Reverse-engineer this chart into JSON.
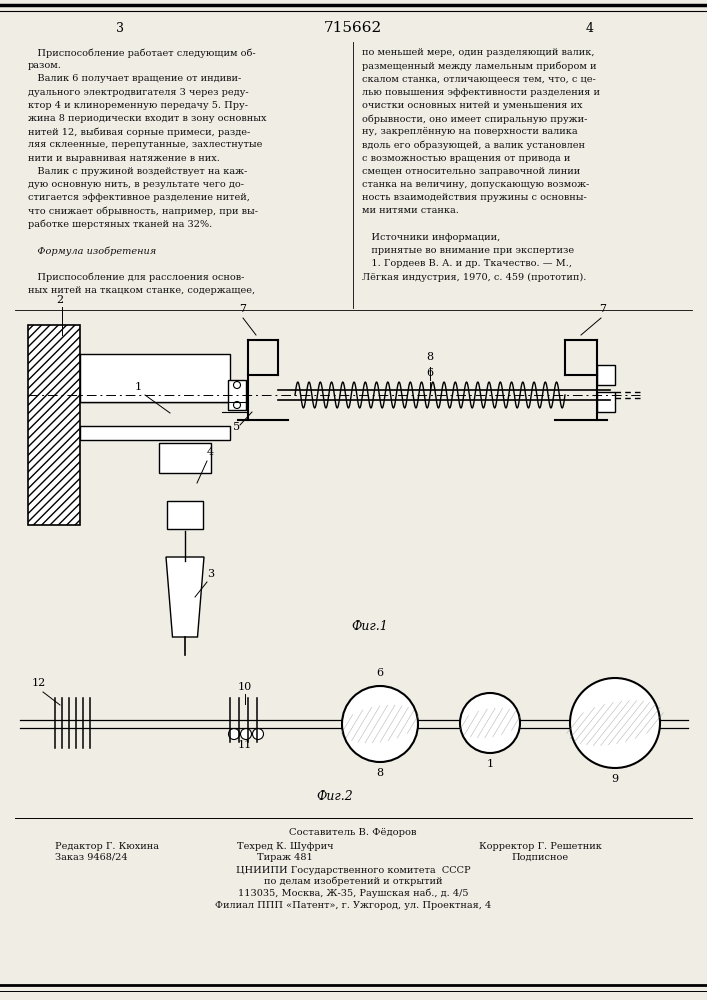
{
  "page_color": "#f0ede5",
  "title_number": "715662",
  "page_left": "3",
  "page_right": "4",
  "col_left_text": [
    "   Приспособление работает следующим об-",
    "разом.",
    "   Валик 6 получает вращение от индиви-",
    "дуального электродвигателя 3 через реду-",
    "ктор 4 и клиноременную передачу 5. Пру-",
    "жина 8 периодически входит в зону основных",
    "нитей 12, выбивая сорные примеси, разде-",
    "ляя склеенные, перепутанные, захлестнутые",
    "нити и выравнивая натяжение в них.",
    "   Валик с пружиной воздействует на каж-",
    "дую основную нить, в результате чего до-",
    "стигается эффективное разделение нитей,",
    "что снижает обрывность, например, при вы-",
    "работке шерстяных тканей на 32%.",
    "",
    "   Формула изобретения",
    "",
    "   Приспособление для расслоения основ-",
    "ных нитей на ткацком станке, содержащее,"
  ],
  "col_right_text": [
    "по меньшей мере, один разделяющий валик,",
    "размещенный между ламельным прибором и",
    "скалом станка, отличающееся тем, что, с це-",
    "лью повышения эффективности разделения и",
    "очистки основных нитей и уменьшения их",
    "обрывности, оно имеет спиральную пружи-",
    "ну, закреплённую на поверхности валика",
    "вдоль его образующей, а валик установлен",
    "с возможностью вращения от привода и",
    "смещен относительно заправочной линии",
    "станка на величину, допускающую возмож-",
    "ность взаимодействия пружины с основны-",
    "ми нитями станка.",
    "",
    "   Источники информации,",
    "   принятые во внимание при экспертизе",
    "   1. Гордеев В. А. и др. Ткачество. — М.,",
    "Лёгкая индустрия, 1970, с. 459 (прототип)."
  ]
}
